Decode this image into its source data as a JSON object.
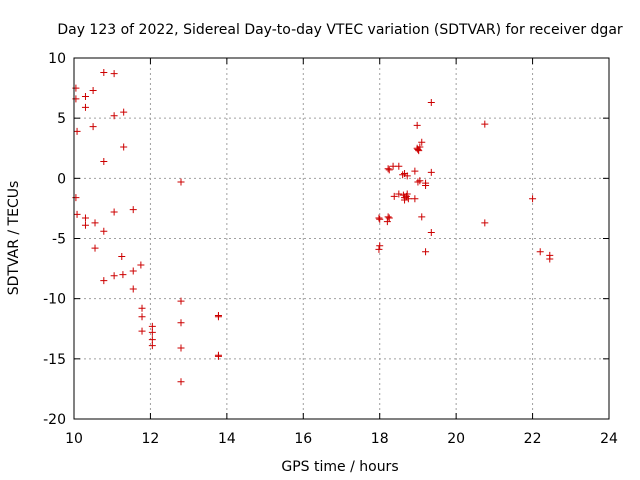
{
  "chart_data": {
    "type": "scatter",
    "title": "Day 123 of 2022, Sidereal Day-to-day VTEC variation (SDTVAR) for receiver dgar",
    "xlabel": "GPS time / hours",
    "ylabel": "SDTVAR / TECUs",
    "xlim": [
      10,
      24
    ],
    "ylim": [
      -20,
      10
    ],
    "xticks": [
      10,
      12,
      14,
      16,
      18,
      20,
      22,
      24
    ],
    "yticks": [
      -20,
      -15,
      -10,
      -5,
      0,
      5,
      10
    ],
    "xtick_labels": [
      "10",
      "12",
      "14",
      "16",
      "18",
      "20",
      "22",
      "24"
    ],
    "ytick_labels": [
      "-20",
      "-15",
      "-10",
      "-5",
      "0",
      "5",
      "10"
    ],
    "grid": true,
    "marker": "+",
    "marker_color": "#cc0000",
    "points": [
      [
        10.05,
        7.5
      ],
      [
        10.05,
        6.6
      ],
      [
        10.08,
        3.9
      ],
      [
        10.05,
        -1.6
      ],
      [
        10.08,
        -3.0
      ],
      [
        10.3,
        6.8
      ],
      [
        10.3,
        5.9
      ],
      [
        10.5,
        7.3
      ],
      [
        10.5,
        4.3
      ],
      [
        10.3,
        -3.3
      ],
      [
        10.3,
        -3.9
      ],
      [
        10.55,
        -3.7
      ],
      [
        10.55,
        -5.8
      ],
      [
        10.78,
        8.8
      ],
      [
        10.78,
        1.4
      ],
      [
        10.78,
        -4.4
      ],
      [
        10.78,
        -8.5
      ],
      [
        11.05,
        8.7
      ],
      [
        11.05,
        5.2
      ],
      [
        11.05,
        -2.8
      ],
      [
        11.05,
        -8.1
      ],
      [
        11.3,
        5.5
      ],
      [
        11.3,
        2.6
      ],
      [
        11.25,
        -6.5
      ],
      [
        11.28,
        -8.0
      ],
      [
        11.55,
        -2.6
      ],
      [
        11.55,
        -7.7
      ],
      [
        11.55,
        -9.2
      ],
      [
        11.75,
        -7.2
      ],
      [
        11.78,
        -10.8
      ],
      [
        11.78,
        -11.5
      ],
      [
        11.78,
        -12.7
      ],
      [
        12.05,
        -12.3
      ],
      [
        12.05,
        -12.8
      ],
      [
        12.05,
        -13.4
      ],
      [
        12.05,
        -13.9
      ],
      [
        12.8,
        -0.3
      ],
      [
        12.8,
        -10.2
      ],
      [
        12.8,
        -12.0
      ],
      [
        12.8,
        -14.1
      ],
      [
        12.8,
        -16.9
      ],
      [
        13.78,
        -11.4
      ],
      [
        13.78,
        -11.5
      ],
      [
        13.78,
        -14.7
      ],
      [
        13.78,
        -14.8
      ],
      [
        17.98,
        -3.3
      ],
      [
        18.0,
        -3.4
      ],
      [
        18.0,
        -5.6
      ],
      [
        17.98,
        -5.9
      ],
      [
        18.22,
        0.8
      ],
      [
        18.25,
        0.7
      ],
      [
        18.22,
        -3.2
      ],
      [
        18.25,
        -3.3
      ],
      [
        18.2,
        -3.6
      ],
      [
        18.35,
        1.0
      ],
      [
        18.38,
        -1.5
      ],
      [
        18.5,
        -1.3
      ],
      [
        18.5,
        1.0
      ],
      [
        18.6,
        0.3
      ],
      [
        18.65,
        0.4
      ],
      [
        18.62,
        -1.4
      ],
      [
        18.65,
        -1.6
      ],
      [
        18.65,
        -1.8
      ],
      [
        18.7,
        -1.5
      ],
      [
        18.72,
        -1.3
      ],
      [
        18.75,
        -1.7
      ],
      [
        18.72,
        0.2
      ],
      [
        18.92,
        0.6
      ],
      [
        18.92,
        -1.7
      ],
      [
        18.98,
        4.4
      ],
      [
        18.98,
        2.5
      ],
      [
        19.0,
        2.4
      ],
      [
        19.02,
        2.3
      ],
      [
        19.05,
        2.6
      ],
      [
        19.1,
        3.0
      ],
      [
        19.0,
        -0.3
      ],
      [
        19.05,
        -0.2
      ],
      [
        19.2,
        -0.6
      ],
      [
        19.2,
        -0.4
      ],
      [
        19.1,
        -3.2
      ],
      [
        19.2,
        -6.1
      ],
      [
        19.35,
        6.3
      ],
      [
        19.35,
        0.5
      ],
      [
        19.35,
        -4.5
      ],
      [
        20.75,
        4.5
      ],
      [
        20.75,
        -3.7
      ],
      [
        22.0,
        -1.7
      ],
      [
        22.2,
        -6.1
      ],
      [
        22.45,
        -6.4
      ],
      [
        22.45,
        -6.7
      ]
    ]
  }
}
